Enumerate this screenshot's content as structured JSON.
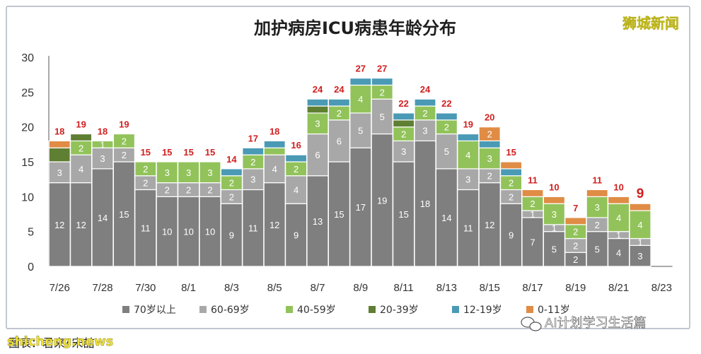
{
  "chart_data": {
    "type": "bar",
    "stacked": true,
    "title": "加护病房ICU病患年龄分布",
    "ylim": [
      0,
      30
    ],
    "yticks": [
      0,
      5,
      10,
      15,
      20,
      25,
      30
    ],
    "grid": false,
    "legend_position": "bottom",
    "categories": [
      "7/26",
      "7/27",
      "7/28",
      "7/29",
      "7/30",
      "7/31",
      "8/1",
      "8/2",
      "8/3",
      "8/4",
      "8/5",
      "8/6",
      "8/7",
      "8/8",
      "8/9",
      "8/10",
      "8/11",
      "8/12",
      "8/13",
      "8/14",
      "8/15",
      "8/16",
      "8/17",
      "8/18",
      "8/19",
      "8/20",
      "8/21",
      "8/22",
      "8/23"
    ],
    "x_tick_labels": [
      "7/26",
      "",
      "7/28",
      "",
      "7/30",
      "",
      "8/1",
      "",
      "8/3",
      "",
      "8/5",
      "",
      "8/7",
      "",
      "8/9",
      "",
      "8/11",
      "",
      "8/13",
      "",
      "8/15",
      "",
      "8/17",
      "",
      "8/19",
      "",
      "8/21",
      "",
      "8/23"
    ],
    "series": [
      {
        "name": "70岁以上",
        "color": "#7f7f7f",
        "values": [
          12,
          12,
          14,
          15,
          11,
          10,
          10,
          10,
          9,
          11,
          12,
          9,
          13,
          15,
          17,
          19,
          15,
          18,
          14,
          11,
          12,
          9,
          7,
          5,
          2,
          5,
          4,
          3,
          null
        ]
      },
      {
        "name": "60-69岁",
        "color": "#a8a8a8",
        "values": [
          3,
          4,
          3,
          2,
          2,
          2,
          2,
          2,
          2,
          3,
          4,
          4,
          6,
          6,
          5,
          5,
          3,
          3,
          5,
          3,
          2,
          2,
          1,
          1,
          2,
          2,
          1,
          1,
          null
        ]
      },
      {
        "name": "40-59岁",
        "color": "#92c35a",
        "values": [
          0,
          2,
          1,
          2,
          2,
          3,
          3,
          3,
          2,
          2,
          1,
          2,
          3,
          2,
          4,
          2,
          2,
          2,
          2,
          4,
          3,
          2,
          2,
          3,
          2,
          3,
          4,
          4,
          null
        ]
      },
      {
        "name": "20-39岁",
        "color": "#5f7f33",
        "values": [
          2,
          1,
          0,
          0,
          0,
          0,
          0,
          0,
          0,
          0,
          0,
          0,
          1,
          0,
          0,
          0,
          1,
          0,
          0,
          0,
          0,
          0,
          0,
          0,
          0,
          0,
          0,
          0,
          null
        ]
      },
      {
        "name": "12-19岁",
        "color": "#4a9ab5",
        "values": [
          0,
          0,
          0,
          0,
          0,
          0,
          0,
          0,
          1,
          1,
          1,
          1,
          1,
          1,
          1,
          1,
          1,
          1,
          1,
          1,
          1,
          1,
          0,
          0,
          0,
          0,
          0,
          0,
          null
        ]
      },
      {
        "name": "0-11岁",
        "color": "#e08c45",
        "values": [
          1,
          0,
          0,
          0,
          0,
          0,
          0,
          0,
          0,
          0,
          0,
          0,
          0,
          0,
          0,
          0,
          0,
          0,
          0,
          0,
          2,
          1,
          1,
          1,
          1,
          1,
          1,
          1,
          null
        ]
      }
    ],
    "totals": [
      18,
      19,
      18,
      19,
      15,
      15,
      15,
      15,
      14,
      17,
      18,
      16,
      24,
      24,
      27,
      27,
      22,
      24,
      22,
      19,
      20,
      15,
      11,
      10,
      7,
      11,
      10,
      9,
      null
    ],
    "segment_labels_shown": [
      [
        12,
        12,
        14,
        15,
        11,
        10,
        10,
        10,
        9,
        11,
        12,
        9,
        13,
        15,
        17,
        19,
        15,
        18,
        14,
        11,
        12,
        9,
        7,
        5,
        2,
        5,
        4,
        3,
        null
      ],
      [
        3,
        4,
        3,
        2,
        2,
        2,
        2,
        2,
        2,
        3,
        4,
        4,
        6,
        6,
        5,
        5,
        3,
        3,
        5,
        3,
        2,
        2,
        1,
        1,
        2,
        2,
        1,
        1,
        null
      ],
      [
        null,
        2,
        1,
        2,
        2,
        3,
        3,
        3,
        2,
        2,
        null,
        2,
        3,
        2,
        4,
        2,
        2,
        2,
        2,
        4,
        3,
        2,
        2,
        3,
        2,
        3,
        4,
        4,
        null
      ],
      [
        null,
        null,
        null,
        null,
        null,
        null,
        null,
        null,
        null,
        null,
        null,
        null,
        null,
        null,
        null,
        null,
        null,
        null,
        null,
        null,
        null,
        null,
        null,
        null,
        null,
        null,
        null,
        null,
        null
      ],
      [
        null,
        null,
        null,
        null,
        null,
        null,
        null,
        null,
        null,
        null,
        null,
        null,
        null,
        null,
        null,
        null,
        null,
        null,
        null,
        null,
        null,
        null,
        null,
        null,
        null,
        null,
        null,
        null,
        null
      ],
      [
        null,
        null,
        null,
        null,
        null,
        null,
        null,
        null,
        null,
        null,
        null,
        null,
        null,
        null,
        null,
        null,
        null,
        null,
        null,
        null,
        2,
        null,
        null,
        null,
        null,
        null,
        null,
        null,
        null
      ]
    ],
    "highlight_total_index": 27
  },
  "branding": {
    "top_right": "狮城新闻",
    "bottom_left_credit": "图表：君来•宋喆",
    "watermark_left": "shicheng.news",
    "watermark_right": "AI计划学习生活篇"
  },
  "colors": {
    "frame_border": "#9aa5b4",
    "total_label": "#d01f1f"
  }
}
